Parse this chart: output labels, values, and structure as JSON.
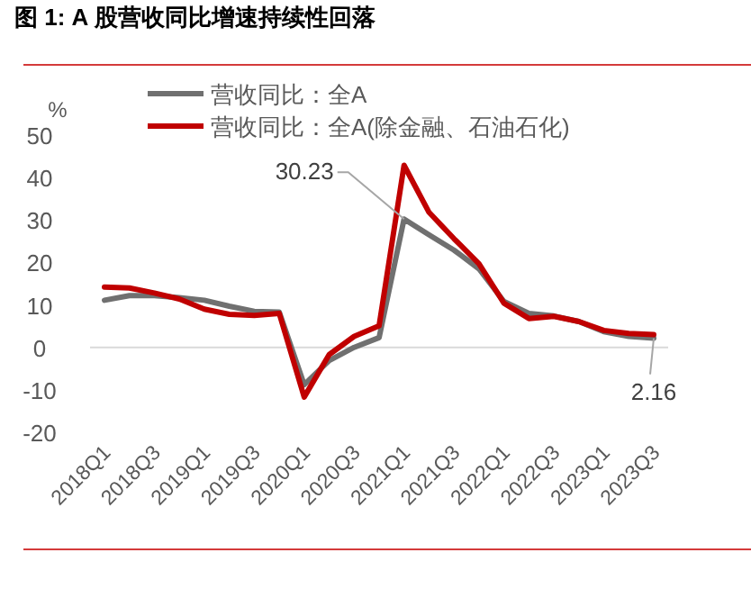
{
  "chart_data": {
    "type": "line",
    "title": "图 1: A 股营收同比增速持续性回落",
    "ylabel": "%",
    "categories": [
      "2018Q1",
      null,
      "2018Q3",
      null,
      "2019Q1",
      null,
      "2019Q3",
      null,
      "2020Q1",
      null,
      "2020Q3",
      null,
      "2021Q1",
      null,
      "2021Q3",
      null,
      "2022Q1",
      null,
      "2022Q3",
      null,
      "2023Q1",
      null,
      "2023Q3"
    ],
    "series": [
      {
        "name": "营收同比：全A",
        "color": "#707070",
        "values": [
          11.1,
          12.2,
          12.2,
          11.7,
          11.1,
          9.7,
          8.5,
          8.3,
          -8.8,
          -3.1,
          0.0,
          2.3,
          30.23,
          26.5,
          22.9,
          18.5,
          10.8,
          8.0,
          7.4,
          6.1,
          3.7,
          2.6,
          2.16
        ],
        "value_labels": [
          null,
          null,
          null,
          null,
          null,
          null,
          null,
          null,
          null,
          null,
          null,
          null,
          "30.23",
          null,
          null,
          null,
          null,
          null,
          null,
          null,
          null,
          null,
          "2.16"
        ]
      },
      {
        "name": "营收同比：全A(除金融、石油石化)",
        "color": "#c00000",
        "values": [
          14.2,
          14.0,
          12.8,
          11.4,
          9.0,
          7.8,
          7.5,
          8.0,
          -11.7,
          -1.7,
          2.6,
          5.1,
          42.9,
          31.8,
          25.6,
          19.7,
          10.4,
          6.8,
          7.3,
          6.1,
          4.0,
          3.3,
          3.0
        ]
      }
    ],
    "ylim": [
      -20,
      50
    ],
    "yticks": [
      -20,
      -10,
      0,
      10,
      20,
      30,
      40,
      50
    ],
    "ref_lines": [
      {
        "axis": "y",
        "value": 0,
        "color": "#d9d9d9"
      }
    ],
    "legend": "top left",
    "grid": false,
    "marker": "none",
    "line_style": "solid"
  }
}
